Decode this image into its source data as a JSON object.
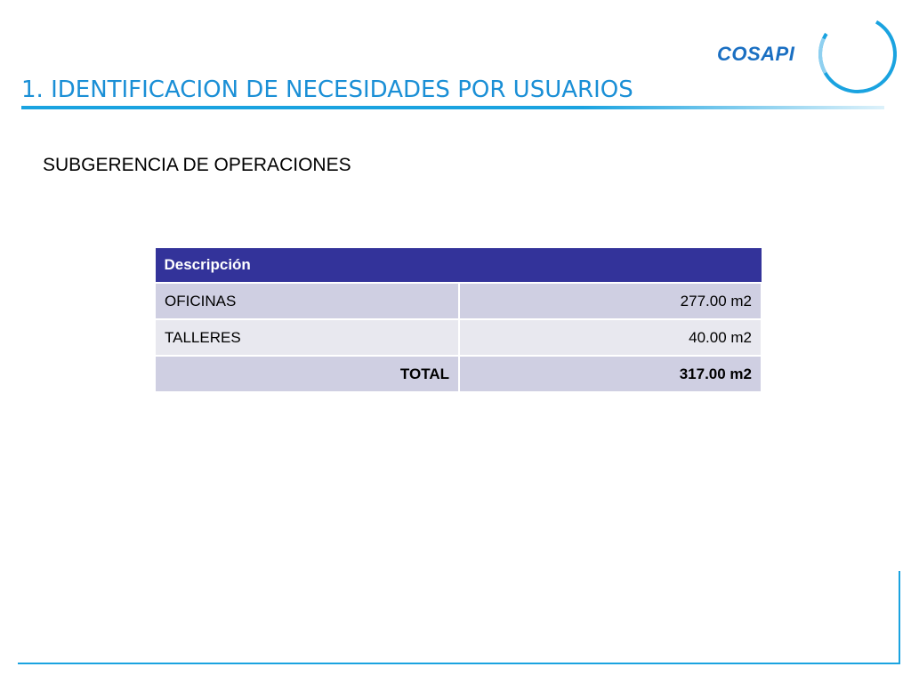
{
  "slide": {
    "title": "1. IDENTIFICACION DE NECESIDADES POR USUARIOS",
    "subtitle": "SUBGERENCIA DE OPERACIONES",
    "logo_text": "COSAPI"
  },
  "table": {
    "header": "Descripción",
    "rows": [
      {
        "label": "OFICINAS",
        "value": "277.00 m2"
      },
      {
        "label": "TALLERES",
        "value": "40.00 m2"
      }
    ],
    "total": {
      "label": "TOTAL",
      "value": "317.00 m2"
    }
  },
  "colors": {
    "accent": "#1a8fd6",
    "header_bg": "#33339a",
    "row_dark": "#cfcfe2",
    "row_light": "#e8e8ef"
  }
}
